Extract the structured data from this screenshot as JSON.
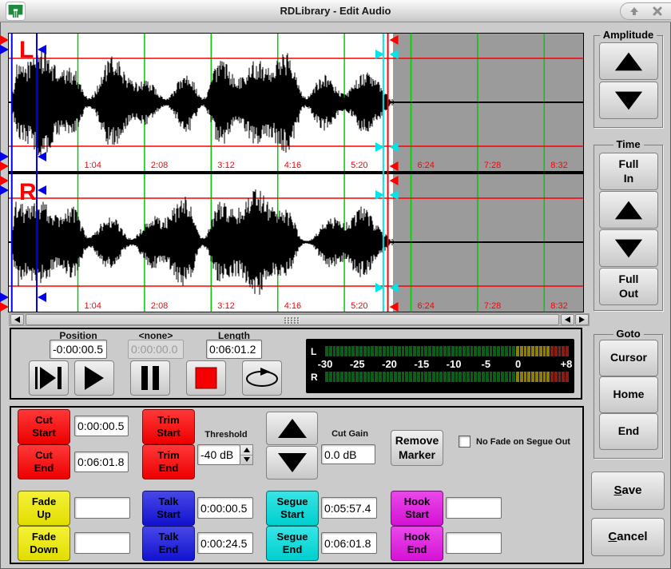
{
  "window": {
    "title": "RDLibrary - Edit Audio"
  },
  "icons": {
    "app_icon": "rivendell-logo",
    "titlebar": [
      "shade-up-arrow-icon",
      "close-icon"
    ],
    "transport": [
      "play-from-start-icon",
      "play-icon",
      "pause-icon",
      "stop-icon",
      "loop-icon"
    ]
  },
  "waveform": {
    "channel_labels": [
      "L",
      "R"
    ],
    "ruler_seconds_per_division": 64,
    "time_labels": [
      "1:04",
      "2:08",
      "3:12",
      "4:16",
      "5:20",
      "6:24",
      "7:28",
      "8:32"
    ],
    "grid_color": "#00cc00",
    "envelope_color": "#ff0000",
    "markers": {
      "cut_start": {
        "time": "0:00:00.5",
        "color": "#ff0000"
      },
      "cut_end": {
        "time": "0:06:01.8",
        "color": "#ff0000"
      },
      "talk_start": {
        "time": "0:00:00.5",
        "color": "#0000ee"
      },
      "talk_end": {
        "time": "0:00:24.5",
        "color": "#0000ee"
      },
      "segue_start": {
        "time": "0:05:57.4",
        "color": "#00e5e5"
      },
      "segue_end": {
        "time": "0:06:01.8",
        "color": "#00e5e5"
      }
    }
  },
  "transport": {
    "position": {
      "label": "Position",
      "value": "-0:00:00.5"
    },
    "marker": {
      "label": "<none>",
      "value": "0:00:00.0"
    },
    "length": {
      "label": "Length",
      "value": "0:06:01.2"
    }
  },
  "meter": {
    "left_channel": "L",
    "right_channel": "R",
    "scale_labels": [
      "-30",
      "-25",
      "-20",
      "-15",
      "-10",
      "-5",
      "0",
      "+8"
    ],
    "scale_min": -30,
    "scale_max": 8,
    "colors": {
      "green": "#0d5c17",
      "yellow": "#8a7d12",
      "red": "#8a1d12"
    },
    "segments": {
      "green": 50,
      "yellow": 9,
      "red": 5
    }
  },
  "side_panel": {
    "amplitude": {
      "title": "Amplitude"
    },
    "time": {
      "title": "Time",
      "full_in": "Full\nIn",
      "full_out": "Full\nOut"
    },
    "goto": {
      "title": "Goto",
      "cursor": "Cursor",
      "home": "Home",
      "end": "End"
    },
    "save": "Save",
    "cancel": "Cancel"
  },
  "edit_panel": {
    "cut_start": {
      "label": "Cut\nStart",
      "value": "0:00:00.5",
      "color": "#ff0000"
    },
    "cut_end": {
      "label": "Cut\nEnd",
      "value": "0:06:01.8",
      "color": "#ff0000"
    },
    "trim_start": {
      "label": "Trim\nStart",
      "color": "#ff0000"
    },
    "trim_end": {
      "label": "Trim\nEnd",
      "color": "#ff0000"
    },
    "threshold": {
      "label": "Threshold",
      "value": "-40 dB"
    },
    "cut_gain": {
      "label": "Cut Gain",
      "value": "0.0 dB"
    },
    "remove_marker": {
      "label": "Remove\nMarker"
    },
    "no_fade": {
      "label": "No Fade on Segue Out",
      "checked": false
    },
    "fade_up": {
      "label": "Fade\nUp",
      "value": "",
      "color": "#f2ee00"
    },
    "fade_down": {
      "label": "Fade\nDown",
      "value": "",
      "color": "#f2ee00"
    },
    "talk_start": {
      "label": "Talk\nStart",
      "value": "0:00:00.5",
      "color": "#1414e0"
    },
    "talk_end": {
      "label": "Talk\nEnd",
      "value": "0:00:24.5",
      "color": "#1414e0"
    },
    "segue_start": {
      "label": "Segue\nStart",
      "value": "0:05:57.4",
      "color": "#00dede"
    },
    "segue_end": {
      "label": "Segue\nEnd",
      "value": "0:06:01.8",
      "color": "#00dede"
    },
    "hook_start": {
      "label": "Hook\nStart",
      "value": "",
      "color": "#e414e4"
    },
    "hook_end": {
      "label": "Hook\nEnd",
      "value": "",
      "color": "#e414e4"
    }
  }
}
